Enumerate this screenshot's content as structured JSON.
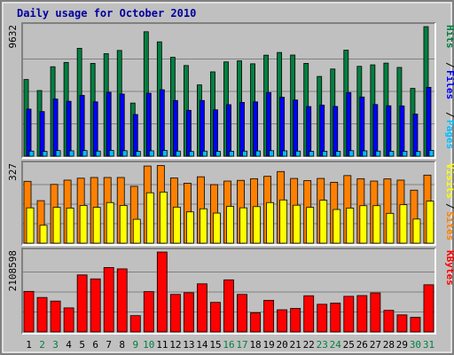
{
  "colors": {
    "background": "#c0c0c0",
    "plot_bg": "#c0c0c0",
    "frame_light": "#ffffff",
    "frame_dark": "#808080",
    "title": "#0000a0",
    "hits": "#008040",
    "files": "#0000ff",
    "pages": "#00c0ff",
    "visits": "#ffff00",
    "sites": "#ff8000",
    "kbytes": "#ff0000",
    "weekday": "#000000",
    "weekend": "#008040"
  },
  "chart_data": {
    "type": "bar",
    "title": "Daily usage for October 2010",
    "days": [
      "1",
      "2",
      "3",
      "4",
      "5",
      "6",
      "7",
      "8",
      "9",
      "10",
      "11",
      "12",
      "13",
      "14",
      "15",
      "16",
      "17",
      "18",
      "19",
      "20",
      "21",
      "22",
      "23",
      "24",
      "25",
      "26",
      "27",
      "28",
      "29",
      "30",
      "31"
    ],
    "weekend_days": [
      "2",
      "3",
      "9",
      "10",
      "16",
      "17",
      "23",
      "24",
      "30",
      "31"
    ],
    "panels": [
      {
        "axis_max_label": "9632",
        "axis_max": 9632,
        "side_labels": [
          "Hits",
          "Files",
          "Pages"
        ],
        "series": [
          {
            "name": "Hits",
            "values": [
              5700,
              4880,
              6650,
              6970,
              8020,
              6900,
              7620,
              7860,
              3950,
              9250,
              8500,
              7350,
              6740,
              5300,
              6270,
              7010,
              7090,
              6870,
              7510,
              7710,
              7520,
              6900,
              5930,
              6480,
              7880,
              6680,
              6790,
              6920,
              6600,
              5040,
              9632
            ]
          },
          {
            "name": "Files",
            "values": [
              3500,
              3320,
              4250,
              4080,
              4520,
              4040,
              4750,
              4620,
              3100,
              4680,
              4940,
              4140,
              3410,
              4140,
              3450,
              3830,
              4000,
              4040,
              4730,
              4380,
              4180,
              3690,
              3800,
              3700,
              4730,
              4400,
              3840,
              3750,
              3740,
              3130,
              5120
            ]
          },
          {
            "name": "Pages",
            "values": [
              380,
              360,
              420,
              400,
              420,
              380,
              430,
              410,
              360,
              400,
              430,
              380,
              350,
              380,
              360,
              370,
              380,
              390,
              410,
              400,
              380,
              360,
              370,
              360,
              410,
              400,
              380,
              370,
              370,
              350,
              430
            ]
          }
        ]
      },
      {
        "axis_max_label": "327",
        "axis_max": 327,
        "side_labels": [
          "Visits",
          "Sites"
        ],
        "series": [
          {
            "name": "Visits",
            "values": [
              148,
              75,
              150,
              147,
              158,
              150,
              170,
              158,
              100,
              211,
              214,
              151,
              131,
              144,
              126,
              154,
              148,
              153,
              170,
              181,
              159,
              150,
              180,
              141,
              147,
              157,
              157,
              125,
              161,
              101,
              176
            ]
          },
          {
            "name": "Sites",
            "values": [
              259,
              178,
              246,
              264,
              272,
              275,
              275,
              275,
              238,
              323,
              325,
              273,
              251,
              278,
              245,
              260,
              263,
              270,
              280,
              300,
              271,
              262,
              271,
              255,
              283,
              270,
              260,
              269,
              264,
              222,
              285
            ]
          }
        ]
      },
      {
        "axis_max_label": "2108598",
        "axis_max": 2108598,
        "side_labels": [
          "KBytes"
        ],
        "series": [
          {
            "name": "KBytes",
            "values": [
              1070000,
              910000,
              815000,
              635000,
              1505000,
              1400000,
              1700000,
              1665000,
              430000,
              1065000,
              2108598,
              990000,
              1035000,
              1270000,
              780000,
              1375000,
              990000,
              505000,
              835000,
              585000,
              620000,
              955000,
              730000,
              760000,
              940000,
              960000,
              1030000,
              570000,
              450000,
              385000,
              1245000
            ]
          }
        ]
      }
    ]
  }
}
